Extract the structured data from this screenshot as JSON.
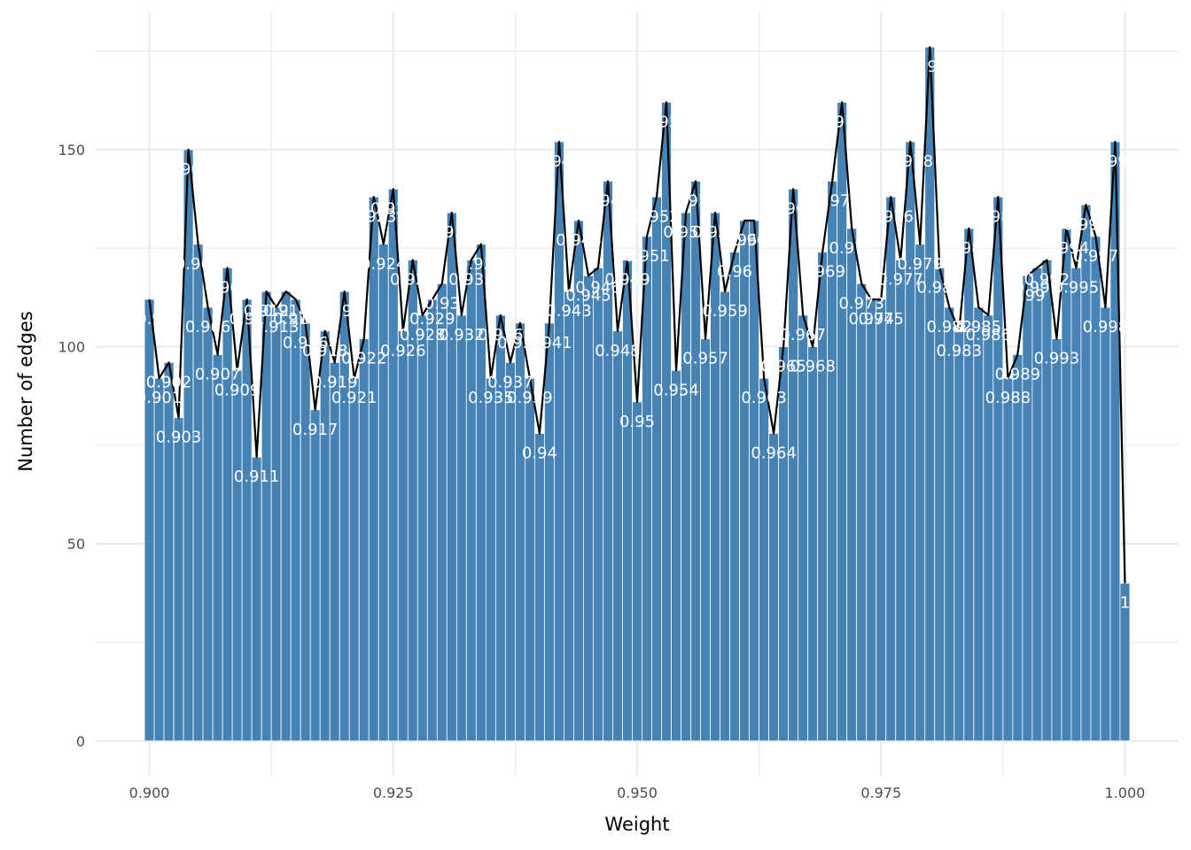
{
  "chart_data": {
    "type": "bar",
    "xlabel": "Weight",
    "ylabel": "Number of edges",
    "xlim": [
      0.8945,
      1.0055
    ],
    "ylim": [
      -8.8,
      184.8
    ],
    "xticks": [
      0.9,
      0.925,
      0.95,
      0.975,
      1.0
    ],
    "xtick_labels": [
      "0.900",
      "0.925",
      "0.950",
      "0.975",
      "1.000"
    ],
    "yticks": [
      0,
      50,
      100,
      150
    ],
    "ytick_labels": [
      "0",
      "50",
      "100",
      "150"
    ],
    "grid": true,
    "overlay": "line connecting bar tops",
    "colors": {
      "bar": "#4682B4",
      "line": "#000000",
      "label": "#ffffff",
      "grid": "#ebebeb"
    },
    "x": [
      0.9,
      0.901,
      0.902,
      0.903,
      0.904,
      0.905,
      0.906,
      0.907,
      0.908,
      0.909,
      0.91,
      0.911,
      0.912,
      0.913,
      0.914,
      0.915,
      0.916,
      0.917,
      0.918,
      0.919,
      0.92,
      0.921,
      0.922,
      0.923,
      0.924,
      0.925,
      0.926,
      0.927,
      0.928,
      0.929,
      0.93,
      0.931,
      0.932,
      0.933,
      0.934,
      0.935,
      0.936,
      0.937,
      0.938,
      0.939,
      0.94,
      0.941,
      0.942,
      0.943,
      0.944,
      0.945,
      0.946,
      0.947,
      0.948,
      0.949,
      0.95,
      0.951,
      0.952,
      0.953,
      0.954,
      0.955,
      0.956,
      0.957,
      0.958,
      0.959,
      0.96,
      0.961,
      0.962,
      0.963,
      0.964,
      0.965,
      0.966,
      0.967,
      0.968,
      0.969,
      0.97,
      0.971,
      0.972,
      0.973,
      0.974,
      0.975,
      0.976,
      0.977,
      0.978,
      0.979,
      0.98,
      0.981,
      0.982,
      0.983,
      0.984,
      0.985,
      0.986,
      0.987,
      0.988,
      0.989,
      0.99,
      0.991,
      0.992,
      0.993,
      0.994,
      0.995,
      0.996,
      0.997,
      0.998,
      0.999,
      1.0
    ],
    "values": [
      112,
      92,
      96,
      82,
      150,
      126,
      110,
      98,
      120,
      94,
      112,
      72,
      114,
      110,
      114,
      112,
      106,
      84,
      104,
      96,
      114,
      92,
      102,
      138,
      126,
      140,
      104,
      122,
      108,
      112,
      116,
      134,
      108,
      122,
      126,
      92,
      108,
      96,
      106,
      92,
      78,
      106,
      152,
      114,
      132,
      118,
      120,
      142,
      104,
      122,
      86,
      128,
      138,
      162,
      94,
      134,
      142,
      102,
      134,
      114,
      124,
      132,
      132,
      92,
      78,
      100,
      140,
      108,
      100,
      124,
      142,
      162,
      130,
      116,
      112,
      112,
      138,
      122,
      152,
      126,
      176,
      120,
      110,
      104,
      130,
      110,
      108,
      138,
      92,
      98,
      118,
      120,
      122,
      102,
      130,
      120,
      136,
      128,
      110,
      152,
      40
    ],
    "labels": [
      "0.9",
      "0.901",
      "0.902",
      "0.903",
      "0.904",
      "0.905",
      "0.906",
      "0.907",
      "0.908",
      "0.909",
      "0.91",
      "0.911",
      "0.912",
      "0.913",
      "0.914",
      "0.915",
      "0.916",
      "0.917",
      "0.918",
      "0.919",
      "0.92",
      "0.921",
      "0.922",
      "0.923",
      "0.924",
      "0.925",
      "0.926",
      "0.927",
      "0.928",
      "0.929",
      "0.93",
      "0.931",
      "0.932",
      "0.933",
      "0.934",
      "0.935",
      "0.936",
      "0.937",
      "0.938",
      "0.939",
      "0.94",
      "0.941",
      "0.942",
      "0.943",
      "0.944",
      "0.945",
      "0.946",
      "0.947",
      "0.948",
      "0.949",
      "0.95",
      "0.951",
      "0.952",
      "0.953",
      "0.954",
      "0.955",
      "0.956",
      "0.957",
      "0.958",
      "0.959",
      "0.96",
      "0.961",
      "0.962",
      "0.963",
      "0.964",
      "0.965",
      "0.966",
      "0.967",
      "0.968",
      "0.969",
      "0.97",
      "0.971",
      "0.972",
      "0.973",
      "0.974",
      "0.975",
      "0.976",
      "0.977",
      "0.978",
      "0.979",
      "0.98",
      "0.981",
      "0.982",
      "0.983",
      "0.984",
      "0.985",
      "0.986",
      "0.987",
      "0.988",
      "0.989",
      "0.99",
      "0.991",
      "0.992",
      "0.993",
      "0.994",
      "0.995",
      "0.996",
      "0.997",
      "0.998",
      "0.999",
      "1"
    ]
  }
}
